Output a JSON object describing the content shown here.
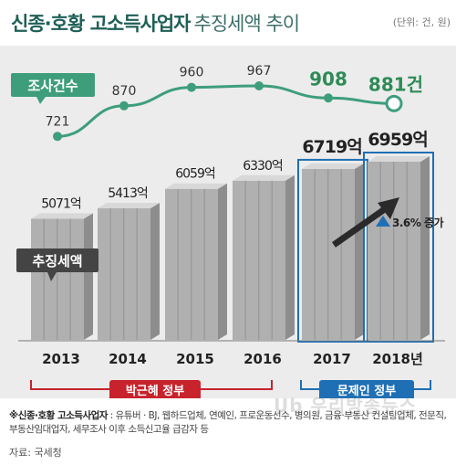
{
  "header": {
    "title_main": "신종·호황 고소득사업자",
    "title_sub": "추징세액 추이",
    "unit": "(단위: 건, 원)"
  },
  "labels": {
    "cases_tag": "조사건수",
    "tax_tag": "추징세액",
    "increase": "3.6% 증가",
    "gov_park": "박근혜 정부",
    "gov_moon": "문제인 정부"
  },
  "footnote": {
    "head": "※신종·호황 고소득사업자",
    "body": " : 유튜버 · BJ, 웹하드업체, 연예인, 프로운동선수, 병의원, 금융·부동산 컨설팅업체, 전문직, 부동산임대업자, 세무조사 이후 소득신고율 급감자 등"
  },
  "source": "자료: 국세청",
  "watermark": "Ub 우리방송뉴스",
  "colors": {
    "title": "#1e5f57",
    "accent_green": "#3e9e7c",
    "highlight_green": "#2e8b57",
    "park_red": "#c8232c",
    "moon_blue": "#1f6fb5",
    "bar_gray": "#a8a8a8",
    "tag_dark": "#444444"
  },
  "chart_data": [
    {
      "type": "line",
      "series": [
        {
          "name": "조사건수",
          "x": [
            "2013",
            "2014",
            "2015",
            "2016",
            "2017",
            "2018"
          ],
          "values": [
            721,
            870,
            960,
            967,
            908,
            881
          ],
          "labels": [
            "721",
            "870",
            "960",
            "967",
            "908",
            "881건"
          ]
        }
      ]
    },
    {
      "type": "bar",
      "categories": [
        "2013",
        "2014",
        "2015",
        "2016",
        "2017",
        "2018년"
      ],
      "series": [
        {
          "name": "추징세액",
          "values": [
            5071,
            5413,
            6059,
            6330,
            6719,
            6959
          ],
          "labels": [
            "5071억",
            "5413억",
            "6059억",
            "6330억",
            "6719억",
            "6959억"
          ]
        }
      ]
    }
  ]
}
